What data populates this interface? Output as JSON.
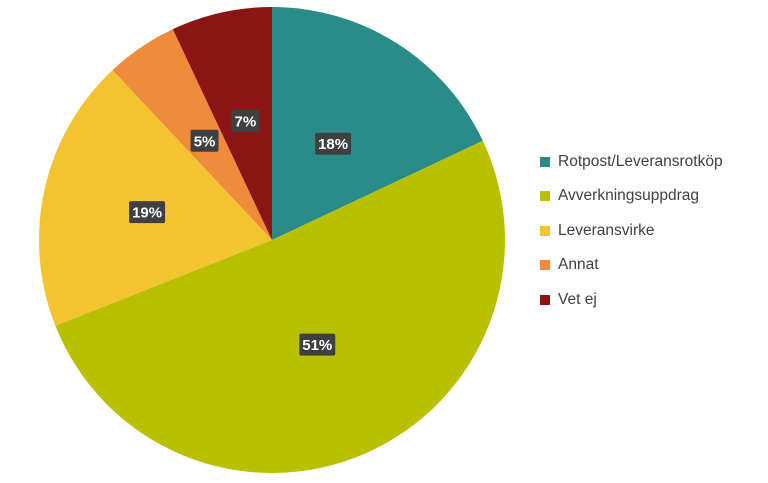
{
  "chart_data": {
    "type": "pie",
    "start_angle_deg": 0,
    "direction": "clockwise",
    "legend_position": "right",
    "slices": [
      {
        "label": "Rotpost/Leveransrotköp",
        "value": 18,
        "display": "18%",
        "color": "#2A8C88"
      },
      {
        "label": "Avverkningsuppdrag",
        "value": 51,
        "display": "51%",
        "color": "#B8C000"
      },
      {
        "label": "Leveransvirke",
        "value": 19,
        "display": "19%",
        "color": "#F4C430"
      },
      {
        "label": "Annat",
        "value": 5,
        "display": "5%",
        "color": "#EF8B3A"
      },
      {
        "label": "Vet ej",
        "value": 7,
        "display": "7%",
        "color": "#8B1515"
      }
    ]
  }
}
